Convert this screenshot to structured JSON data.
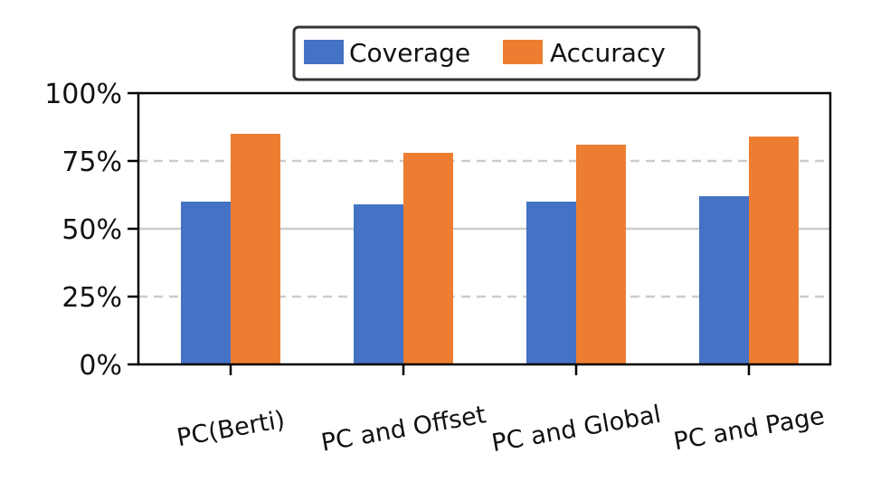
{
  "chart_data": {
    "type": "bar",
    "categories": [
      "PC(Berti)",
      "PC and Offset",
      "PC and Global",
      "PC and Page"
    ],
    "series": [
      {
        "name": "Coverage",
        "values": [
          60,
          59,
          60,
          62
        ],
        "color": "#4472C4"
      },
      {
        "name": "Accuracy",
        "values": [
          85,
          78,
          81,
          84
        ],
        "color": "#ED7D31"
      }
    ],
    "ylim": [
      0,
      100
    ],
    "yticks": [
      0,
      25,
      50,
      75,
      100
    ],
    "ytick_labels": [
      "0%",
      "25%",
      "50%",
      "75%",
      "100%"
    ],
    "grid": {
      "y": true,
      "major_solid_at": [
        50
      ],
      "dashed_at": [
        25,
        75
      ]
    },
    "legend": {
      "placement": "top-center",
      "framed": true
    },
    "xtick_rotation": -10
  }
}
